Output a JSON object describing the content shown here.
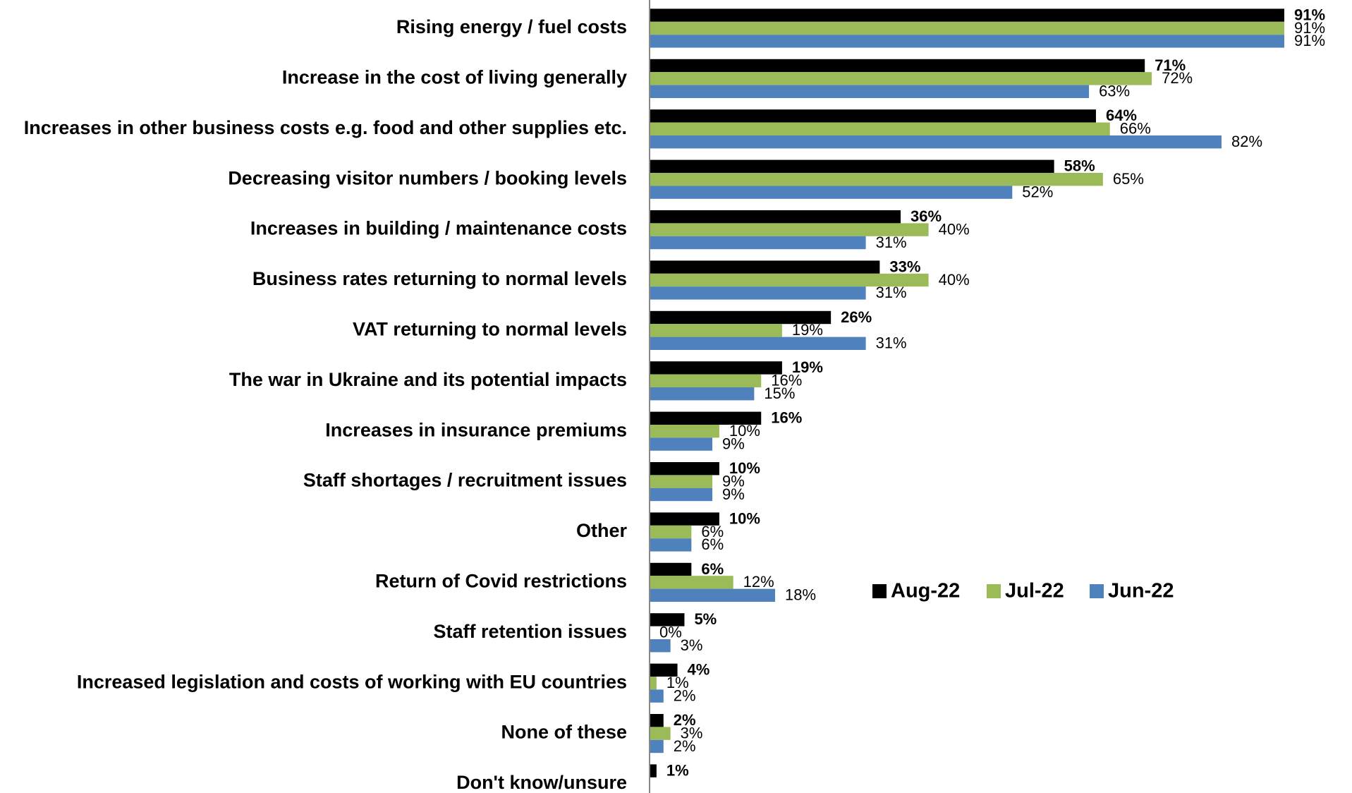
{
  "chart_data": {
    "type": "hbar",
    "categories": [
      "Rising energy / fuel costs",
      "Increase in the cost of living generally",
      "Increases in other business costs e.g. food and other supplies etc.",
      "Decreasing visitor numbers / booking levels",
      "Increases in building / maintenance costs",
      "Business rates returning to normal levels",
      "VAT returning to normal levels",
      "The war in Ukraine and its potential impacts",
      "Increases in insurance premiums",
      "Staff shortages / recruitment issues",
      "Other",
      "Return of Covid restrictions",
      "Staff retention issues",
      "Increased legislation and costs of working with EU countries",
      "None of these",
      "Don't know/unsure"
    ],
    "series": [
      {
        "name": "Aug-22",
        "color": "#000000",
        "values": [
          91,
          71,
          64,
          58,
          36,
          33,
          26,
          19,
          16,
          10,
          10,
          6,
          5,
          4,
          2,
          1
        ],
        "value_labels": [
          "91%",
          "71%",
          "64%",
          "58%",
          "36%",
          "33%",
          "26%",
          "19%",
          "16%",
          "10%",
          "10%",
          "6%",
          "5%",
          "4%",
          "2%",
          "1%"
        ]
      },
      {
        "name": "Jul-22",
        "color": "#9bbb59",
        "values": [
          91,
          72,
          66,
          65,
          40,
          40,
          19,
          16,
          10,
          9,
          6,
          12,
          0,
          1,
          3,
          null
        ],
        "value_labels": [
          "91%",
          "72%",
          "66%",
          "65%",
          "40%",
          "40%",
          "19%",
          "16%",
          "10%",
          "9%",
          "6%",
          "12%",
          "0%",
          "1%",
          "3%",
          null
        ]
      },
      {
        "name": "Jun-22",
        "color": "#4f81bd",
        "values": [
          91,
          63,
          82,
          52,
          31,
          31,
          31,
          15,
          9,
          9,
          6,
          18,
          3,
          2,
          2,
          null
        ],
        "value_labels": [
          "91%",
          "63%",
          "82%",
          "52%",
          "31%",
          "31%",
          "31%",
          "15%",
          "9%",
          "9%",
          "6%",
          "18%",
          "3%",
          "2%",
          "2%",
          null
        ]
      }
    ],
    "xlim": [
      0,
      100
    ]
  }
}
